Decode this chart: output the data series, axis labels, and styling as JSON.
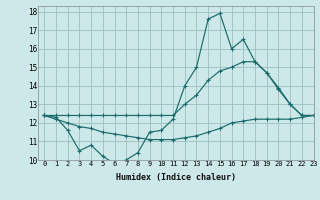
{
  "xlabel": "Humidex (Indice chaleur)",
  "bg_color": "#cde8e8",
  "grid_color": "#9bbfbf",
  "line_color": "#1a6b6b",
  "xlim": [
    -0.5,
    23
  ],
  "ylim": [
    10,
    18.3
  ],
  "yticks": [
    10,
    11,
    12,
    13,
    14,
    15,
    16,
    17,
    18
  ],
  "xticks": [
    0,
    1,
    2,
    3,
    4,
    5,
    6,
    7,
    8,
    9,
    10,
    11,
    12,
    13,
    14,
    15,
    16,
    17,
    18,
    19,
    20,
    21,
    22,
    23
  ],
  "series": [
    [
      12.4,
      12.3,
      11.6,
      10.5,
      10.8,
      10.2,
      9.8,
      10.0,
      10.4,
      11.5,
      11.6,
      12.2,
      14.0,
      15.0,
      17.6,
      17.9,
      16.0,
      16.5,
      15.3,
      14.7,
      13.9,
      13.0,
      12.4,
      12.4
    ],
    [
      12.4,
      12.4,
      12.4,
      12.4,
      12.4,
      12.4,
      12.4,
      12.4,
      12.4,
      12.4,
      12.4,
      12.4,
      13.0,
      13.5,
      14.3,
      14.8,
      15.0,
      15.3,
      15.3,
      14.7,
      13.8,
      13.0,
      12.4,
      12.4
    ],
    [
      12.4,
      12.2,
      12.0,
      11.8,
      11.7,
      11.5,
      11.4,
      11.3,
      11.2,
      11.1,
      11.1,
      11.1,
      11.2,
      11.3,
      11.5,
      11.7,
      12.0,
      12.1,
      12.2,
      12.2,
      12.2,
      12.2,
      12.3,
      12.4
    ]
  ]
}
